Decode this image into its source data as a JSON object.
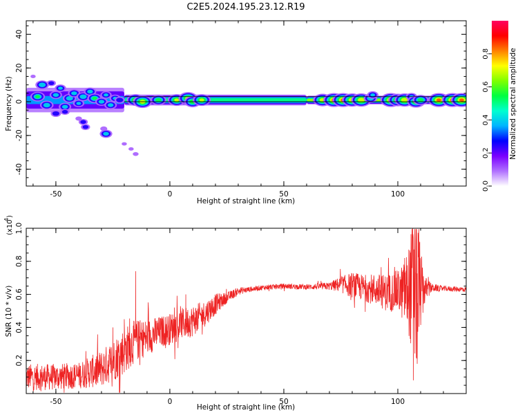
{
  "figure_title": "C2E5.2024.195.23.12.R19",
  "chart_data": [
    {
      "type": "heatmap",
      "title": "C2E5.2024.195.23.12.R19",
      "xlabel": "Height of straight line (km)",
      "ylabel": "Frequency (Hz)",
      "xlim": [
        -63,
        130
      ],
      "ylim": [
        -50,
        48
      ],
      "xticks": [
        -50,
        0,
        50,
        100
      ],
      "xtick_labels": [
        "-50",
        "0",
        "50",
        "100"
      ],
      "yticks": [
        -40,
        -20,
        0,
        20,
        40
      ],
      "ytick_labels": [
        "-40",
        "-20",
        "0",
        "20",
        "40"
      ],
      "colorbar": {
        "label": "Normalized spectral amplitude",
        "range": [
          0,
          1
        ],
        "ticks": [
          0.0,
          0.2,
          0.4,
          0.6,
          0.8
        ],
        "tick_labels": [
          "0.0",
          "0.2",
          "0.4",
          "0.6",
          "0.8"
        ],
        "colors": [
          "#ffffff",
          "#b070ff",
          "#7a00ff",
          "#0000ff",
          "#00b4ff",
          "#00ffd0",
          "#00ff40",
          "#80ff00",
          "#ffff00",
          "#ff8000",
          "#ff0000",
          "#ff0060"
        ]
      },
      "ridge": {
        "center_frequency_hz": 1,
        "segments": [
          {
            "x0": -63,
            "x1": -20,
            "amplitude": 0.35,
            "spread_hz": 6
          },
          {
            "x0": -20,
            "x1": 60,
            "amplitude": 0.55,
            "spread_hz": 2.5
          },
          {
            "x0": 60,
            "x1": 130,
            "amplitude": 0.65,
            "spread_hz": 2
          }
        ]
      },
      "blobs": [
        {
          "x": -56,
          "y": 10,
          "amp": 0.5
        },
        {
          "x": -52,
          "y": 11,
          "amp": 0.3
        },
        {
          "x": -58,
          "y": 3,
          "amp": 0.55
        },
        {
          "x": -54,
          "y": -2,
          "amp": 0.5
        },
        {
          "x": -50,
          "y": 4,
          "amp": 0.45
        },
        {
          "x": -48,
          "y": 8,
          "amp": 0.4
        },
        {
          "x": -46,
          "y": -3,
          "amp": 0.45
        },
        {
          "x": -44,
          "y": 2,
          "amp": 0.5
        },
        {
          "x": -42,
          "y": 5,
          "amp": 0.45
        },
        {
          "x": -40,
          "y": -1,
          "amp": 0.4
        },
        {
          "x": -38,
          "y": 3,
          "amp": 0.5
        },
        {
          "x": -35,
          "y": 6,
          "amp": 0.45
        },
        {
          "x": -33,
          "y": 2,
          "amp": 0.55
        },
        {
          "x": -30,
          "y": 0,
          "amp": 0.45
        },
        {
          "x": -28,
          "y": 4,
          "amp": 0.4
        },
        {
          "x": -26,
          "y": -2,
          "amp": 0.45
        },
        {
          "x": -24,
          "y": 2,
          "amp": 0.4
        },
        {
          "x": -22,
          "y": 1,
          "amp": 0.35
        },
        {
          "x": -50,
          "y": -7,
          "amp": 0.35
        },
        {
          "x": -46,
          "y": -6,
          "amp": 0.3
        },
        {
          "x": -38,
          "y": -12,
          "amp": 0.3
        },
        {
          "x": -37,
          "y": -15,
          "amp": 0.3
        },
        {
          "x": -28,
          "y": -19,
          "amp": 0.45
        },
        {
          "x": -29,
          "y": -16,
          "amp": 0.2
        },
        {
          "x": -20,
          "y": -25,
          "amp": 0.12
        },
        {
          "x": -17,
          "y": -28,
          "amp": 0.12
        },
        {
          "x": -15,
          "y": -31,
          "amp": 0.15
        },
        {
          "x": -40,
          "y": -10,
          "amp": 0.18
        },
        {
          "x": -60,
          "y": 15,
          "amp": 0.12
        },
        {
          "x": -15,
          "y": 1,
          "amp": 0.7
        },
        {
          "x": -12,
          "y": 0,
          "amp": 0.75
        },
        {
          "x": -5,
          "y": 1,
          "amp": 0.6
        },
        {
          "x": 3,
          "y": 1,
          "amp": 0.7
        },
        {
          "x": 8,
          "y": 2,
          "amp": 0.75
        },
        {
          "x": 10,
          "y": 0,
          "amp": 0.65
        },
        {
          "x": 14,
          "y": 1,
          "amp": 0.7
        },
        {
          "x": 67,
          "y": 1,
          "amp": 0.75
        },
        {
          "x": 72,
          "y": 1,
          "amp": 0.85
        },
        {
          "x": 76,
          "y": 1,
          "amp": 0.85
        },
        {
          "x": 80,
          "y": 1,
          "amp": 0.8
        },
        {
          "x": 84,
          "y": 1,
          "amp": 0.8
        },
        {
          "x": 88,
          "y": 2,
          "amp": 0.5
        },
        {
          "x": 89,
          "y": 4,
          "amp": 0.4
        },
        {
          "x": 97,
          "y": 1,
          "amp": 0.85
        },
        {
          "x": 100,
          "y": 1,
          "amp": 0.75
        },
        {
          "x": 103,
          "y": 1,
          "amp": 0.8
        },
        {
          "x": 106,
          "y": 3,
          "amp": 0.4
        },
        {
          "x": 108,
          "y": 0,
          "amp": 0.7
        },
        {
          "x": 110,
          "y": 1,
          "amp": 0.6
        },
        {
          "x": 118,
          "y": 1,
          "amp": 0.85
        },
        {
          "x": 124,
          "y": 1,
          "amp": 0.85
        },
        {
          "x": 128,
          "y": 1,
          "amp": 0.85
        }
      ],
      "reference_lines_hz": [
        3,
        0
      ]
    },
    {
      "type": "line",
      "xlabel": "Height of straight line (km)",
      "ylabel": "SNR (10 * v/v)",
      "y_multiplier_label": "(x10",
      "y_multiplier_exponent": "4",
      "xlim": [
        -63,
        130
      ],
      "ylim": [
        0,
        1.0
      ],
      "xticks": [
        -50,
        0,
        50,
        100
      ],
      "xtick_labels": [
        "-50",
        "0",
        "50",
        "100"
      ],
      "yticks": [
        0.2,
        0.4,
        0.6,
        0.8,
        1.0
      ],
      "ytick_labels": [
        "0.2",
        "0.4",
        "0.6",
        "0.8",
        "1.0"
      ],
      "series": [
        {
          "name": "SNR",
          "color": "#ee2222",
          "envelope": {
            "x": [
              -63,
              -50,
              -40,
              -30,
              -25,
              -20,
              -15,
              -10,
              -5,
              0,
              5,
              10,
              15,
              20,
              25,
              30,
              35,
              40,
              50,
              60,
              70,
              75,
              80,
              85,
              90,
              95,
              100,
              103,
              105,
              107,
              109,
              110,
              112,
              115,
              120,
              130
            ],
            "mean": [
              0.1,
              0.1,
              0.11,
              0.15,
              0.2,
              0.26,
              0.32,
              0.34,
              0.37,
              0.39,
              0.42,
              0.44,
              0.48,
              0.54,
              0.58,
              0.62,
              0.63,
              0.64,
              0.65,
              0.645,
              0.65,
              0.66,
              0.655,
              0.64,
              0.63,
              0.61,
              0.62,
              0.61,
              0.63,
              0.63,
              0.62,
              0.63,
              0.63,
              0.64,
              0.635,
              0.63
            ],
            "noise": [
              0.05,
              0.05,
              0.05,
              0.07,
              0.08,
              0.09,
              0.08,
              0.07,
              0.06,
              0.06,
              0.06,
              0.06,
              0.05,
              0.04,
              0.02,
              0.015,
              0.01,
              0.01,
              0.01,
              0.01,
              0.015,
              0.03,
              0.05,
              0.05,
              0.06,
              0.07,
              0.08,
              0.12,
              0.18,
              0.3,
              0.3,
              0.15,
              0.05,
              0.015,
              0.01,
              0.01
            ]
          },
          "peaks": [
            {
              "x": -15,
              "y": 0.74
            },
            {
              "x": -20,
              "y": 0.45
            },
            {
              "x": -25,
              "y": 0.4
            },
            {
              "x": 7,
              "y": 0.6
            },
            {
              "x": 92,
              "y": 0.71
            },
            {
              "x": 103,
              "y": 0.82
            },
            {
              "x": 106.5,
              "y": 1.0
            },
            {
              "x": 106.8,
              "y": 0.08
            },
            {
              "x": 108,
              "y": 0.92
            },
            {
              "x": 108.5,
              "y": 0.18
            }
          ]
        }
      ]
    }
  ]
}
